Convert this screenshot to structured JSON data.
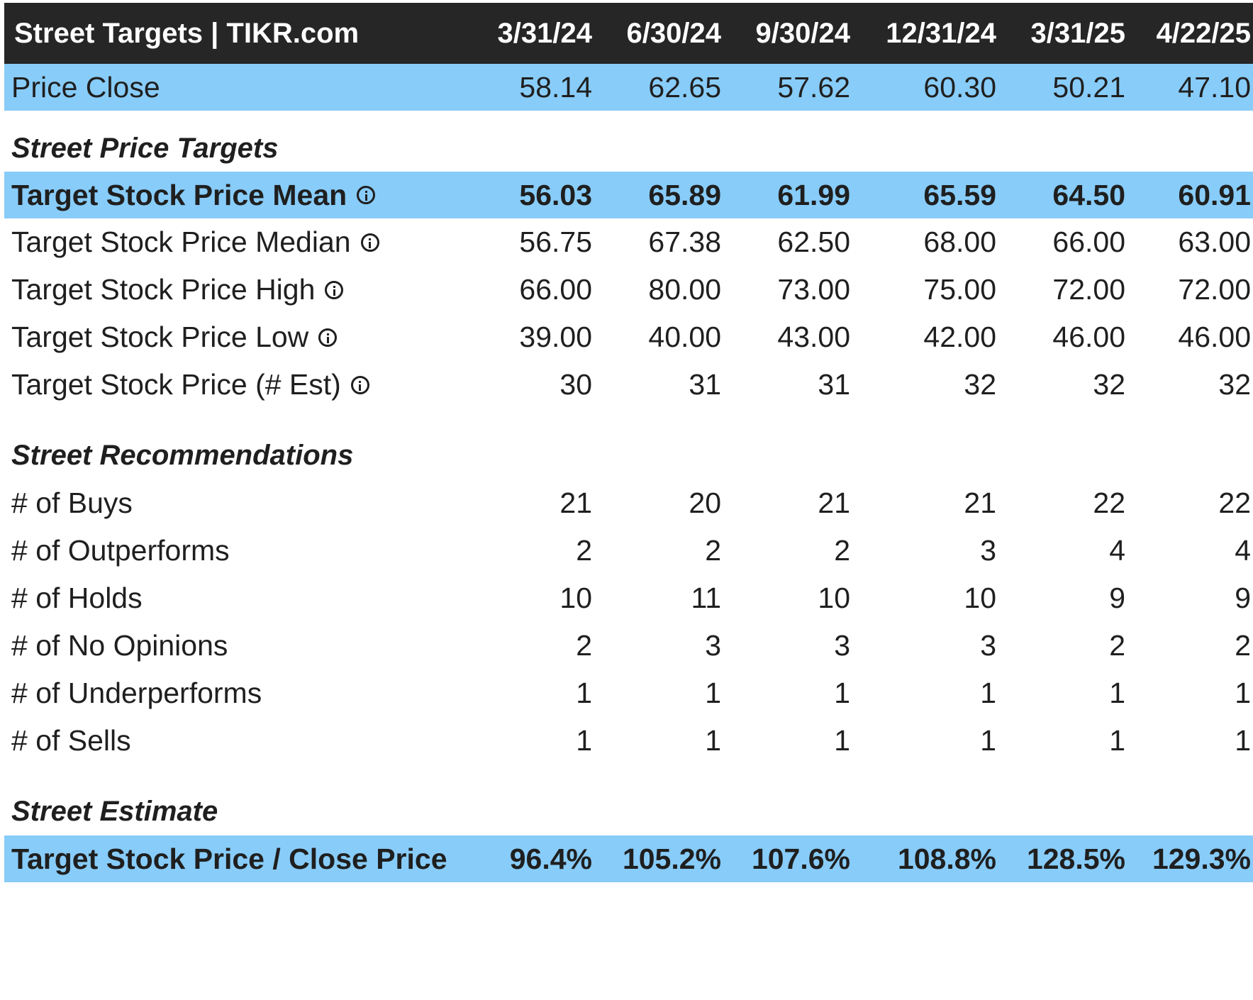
{
  "header": {
    "title": "Street Targets | TIKR.com",
    "dates": [
      "3/31/24",
      "6/30/24",
      "9/30/24",
      "12/31/24",
      "3/31/25",
      "4/22/25"
    ]
  },
  "price_close": {
    "label": "Price Close",
    "values": [
      "58.14",
      "62.65",
      "57.62",
      "60.30",
      "50.21",
      "47.10"
    ]
  },
  "price_targets": {
    "section_title": "Street Price Targets",
    "rows": [
      {
        "label": "Target Stock Price Mean",
        "icon": "info-icon",
        "values": [
          "56.03",
          "65.89",
          "61.99",
          "65.59",
          "64.50",
          "60.91"
        ]
      },
      {
        "label": "Target Stock Price Median",
        "icon": "info-icon",
        "values": [
          "56.75",
          "67.38",
          "62.50",
          "68.00",
          "66.00",
          "63.00"
        ]
      },
      {
        "label": "Target Stock Price High",
        "icon": "info-icon",
        "values": [
          "66.00",
          "80.00",
          "73.00",
          "75.00",
          "72.00",
          "72.00"
        ]
      },
      {
        "label": "Target Stock Price Low",
        "icon": "info-icon",
        "values": [
          "39.00",
          "40.00",
          "43.00",
          "42.00",
          "46.00",
          "46.00"
        ]
      },
      {
        "label": "Target Stock Price (# Est)",
        "icon": "info-icon",
        "values": [
          "30",
          "31",
          "31",
          "32",
          "32",
          "32"
        ]
      }
    ]
  },
  "recommendations": {
    "section_title": "Street Recommendations",
    "rows": [
      {
        "label": "# of Buys",
        "values": [
          "21",
          "20",
          "21",
          "21",
          "22",
          "22"
        ]
      },
      {
        "label": "# of Outperforms",
        "values": [
          "2",
          "2",
          "2",
          "3",
          "4",
          "4"
        ]
      },
      {
        "label": "# of Holds",
        "values": [
          "10",
          "11",
          "10",
          "10",
          "9",
          "9"
        ]
      },
      {
        "label": "# of No Opinions",
        "values": [
          "2",
          "3",
          "3",
          "3",
          "2",
          "2"
        ]
      },
      {
        "label": "# of Underperforms",
        "values": [
          "1",
          "1",
          "1",
          "1",
          "1",
          "1"
        ]
      },
      {
        "label": "# of Sells",
        "values": [
          "1",
          "1",
          "1",
          "1",
          "1",
          "1"
        ]
      }
    ]
  },
  "estimate": {
    "section_title": "Street Estimate",
    "rows": [
      {
        "label": "Target Stock Price / Close Price",
        "values": [
          "96.4%",
          "105.2%",
          "107.6%",
          "108.8%",
          "128.5%",
          "129.3%"
        ]
      }
    ]
  },
  "colors": {
    "header_bg": "#262626",
    "highlight_bg": "#88ccf9"
  }
}
